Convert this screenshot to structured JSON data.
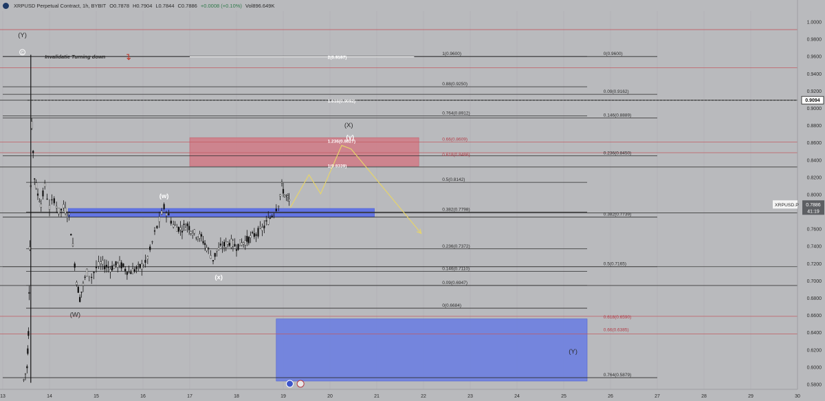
{
  "header": {
    "symbol": "XRPUSD Perpetual Contract, 1h, BYBIT",
    "open": "O0.7878",
    "high": "H0.7904",
    "low": "L0.7844",
    "close": "C0.7886",
    "change": "+0.0008 (+0.10%)",
    "volume": "Vol896.649K"
  },
  "chart_data": {
    "type": "candlestick",
    "symbol": "XRPUSD Perpetual Contract",
    "interval": "1h",
    "exchange": "BYBIT",
    "ylim": [
      0.58,
      1.0
    ],
    "y_ticks": [
      "0.5800",
      "0.6000",
      "0.6200",
      "0.6400",
      "0.6600",
      "0.6800",
      "0.7000",
      "0.7200",
      "0.7400",
      "0.7600",
      "0.7800",
      "0.8000",
      "0.8200",
      "0.8400",
      "0.8600",
      "0.8800",
      "0.9000",
      "0.9200",
      "0.9400",
      "0.9600",
      "0.9800",
      "1.0000"
    ],
    "x_ticks": [
      {
        "label": "13",
        "day": 13
      },
      {
        "label": "14",
        "day": 14
      },
      {
        "label": "15",
        "day": 15
      },
      {
        "label": "16",
        "day": 16
      },
      {
        "label": "17",
        "day": 17
      },
      {
        "label": "18",
        "day": 18
      },
      {
        "label": "19",
        "day": 19
      },
      {
        "label": "20",
        "day": 20
      },
      {
        "label": "21",
        "day": 21
      },
      {
        "label": "22",
        "day": 22
      },
      {
        "label": "23",
        "day": 23
      },
      {
        "label": "24",
        "day": 24
      },
      {
        "label": "25",
        "day": 25
      },
      {
        "label": "26",
        "day": 26
      },
      {
        "label": "27",
        "day": 27
      },
      {
        "label": "28",
        "day": 28
      },
      {
        "label": "29",
        "day": 29
      },
      {
        "label": "30",
        "day": 30
      }
    ],
    "price_path": [
      [
        13.45,
        0.585
      ],
      [
        13.52,
        0.6
      ],
      [
        13.55,
        0.64
      ],
      [
        13.58,
        0.74
      ],
      [
        13.62,
        0.88
      ],
      [
        13.68,
        0.82
      ],
      [
        13.75,
        0.8
      ],
      [
        13.82,
        0.79
      ],
      [
        13.9,
        0.81
      ],
      [
        14.0,
        0.785
      ],
      [
        14.1,
        0.795
      ],
      [
        14.2,
        0.78
      ],
      [
        14.3,
        0.785
      ],
      [
        14.42,
        0.775
      ],
      [
        14.5,
        0.74
      ],
      [
        14.58,
        0.7
      ],
      [
        14.65,
        0.68
      ],
      [
        14.72,
        0.695
      ],
      [
        14.8,
        0.71
      ],
      [
        14.9,
        0.705
      ],
      [
        15.0,
        0.715
      ],
      [
        15.1,
        0.72
      ],
      [
        15.3,
        0.715
      ],
      [
        15.5,
        0.72
      ],
      [
        15.7,
        0.71
      ],
      [
        15.9,
        0.715
      ],
      [
        16.05,
        0.72
      ],
      [
        16.15,
        0.735
      ],
      [
        16.25,
        0.755
      ],
      [
        16.35,
        0.77
      ],
      [
        16.45,
        0.785
      ],
      [
        16.55,
        0.775
      ],
      [
        16.65,
        0.765
      ],
      [
        16.8,
        0.76
      ],
      [
        16.95,
        0.765
      ],
      [
        17.1,
        0.755
      ],
      [
        17.25,
        0.75
      ],
      [
        17.4,
        0.735
      ],
      [
        17.5,
        0.725
      ],
      [
        17.58,
        0.735
      ],
      [
        17.7,
        0.74
      ],
      [
        17.85,
        0.745
      ],
      [
        18.0,
        0.74
      ],
      [
        18.15,
        0.745
      ],
      [
        18.3,
        0.75
      ],
      [
        18.42,
        0.755
      ],
      [
        18.55,
        0.76
      ],
      [
        18.68,
        0.77
      ],
      [
        18.8,
        0.78
      ],
      [
        18.9,
        0.79
      ],
      [
        18.97,
        0.81
      ],
      [
        19.03,
        0.8
      ],
      [
        19.1,
        0.795
      ],
      [
        19.15,
        0.789
      ]
    ],
    "last_price": "0.7886",
    "price_label": "XRPUSD.P",
    "countdown": "41:19",
    "marked_price": "0.9094",
    "hlines": [
      0.9912,
      0.947,
      0.9094,
      0.8609,
      0.8486,
      0.832,
      0.7788,
      0.7165,
      0.6947,
      0.659,
      0.6385
    ],
    "zones": [
      {
        "name": "resistance-zone",
        "color": "#d07a86",
        "day_start": 17.0,
        "day_end": 21.9,
        "from": 0.833,
        "to": 0.866
      },
      {
        "name": "support-bar",
        "color": "#5a6ee6",
        "day_start": 14.4,
        "day_end": 20.95,
        "from": 0.774,
        "to": 0.784
      },
      {
        "name": "target-zone",
        "color": "#6d7fe0",
        "day_start": 18.85,
        "day_end": 25.5,
        "from": 0.584,
        "to": 0.656
      }
    ],
    "projection": [
      [
        19.15,
        0.785
      ],
      [
        19.55,
        0.823
      ],
      [
        19.8,
        0.801
      ],
      [
        20.25,
        0.857
      ],
      [
        20.45,
        0.853
      ],
      [
        21.95,
        0.755
      ]
    ],
    "fib_left": [
      {
        "label": "2(0.9597)",
        "value": 0.9597,
        "day_start": 17.0,
        "day_end": 22.8
      },
      {
        "label": "1.618(0.9092)",
        "value": 0.9092,
        "day_start": 13.0,
        "day_end": 24.5
      },
      {
        "label": "1.236(0.8627)",
        "value": 0.8627,
        "day_start": 13.0,
        "day_end": 24.5
      },
      {
        "label": "1(0.8339)",
        "value": 0.8339,
        "day_start": 17.0,
        "day_end": 22.8
      }
    ],
    "fib_mid": [
      {
        "label": "1(0.9600)",
        "value": 0.96,
        "day_start": 13.0,
        "day_end": 25.5
      },
      {
        "label": "0.88(0.9250)",
        "value": 0.925,
        "day_start": 13.0,
        "day_end": 25.5
      },
      {
        "label": "0.764(0.8912)",
        "value": 0.8912,
        "day_start": 13.0,
        "day_end": 25.5
      },
      {
        "label": "0.5(0.8142)",
        "value": 0.8142,
        "day_start": 13.5,
        "day_end": 25.5
      },
      {
        "label": "0.382(0.7798)",
        "value": 0.7798,
        "day_start": 13.5,
        "day_end": 25.5
      },
      {
        "label": "0.236(0.7372)",
        "value": 0.7372,
        "day_start": 13.5,
        "day_end": 25.5
      },
      {
        "label": "0.146(0.7110)",
        "value": 0.711,
        "day_start": 13.5,
        "day_end": 25.5
      },
      {
        "label": "0.09(0.6947)",
        "value": 0.6947,
        "day_start": 13.5,
        "day_end": 25.5
      },
      {
        "label": "0(0.6684)",
        "value": 0.6684,
        "day_start": 13.5,
        "day_end": 25.5
      }
    ],
    "fib_right": [
      {
        "label": "0(0.9600)",
        "value": 0.96,
        "day_start": 13.0,
        "day_end": 27.0
      },
      {
        "label": "0.09(0.9162)",
        "value": 0.9162,
        "day_start": 13.0,
        "day_end": 27.0
      },
      {
        "label": "0.146(0.8889)",
        "value": 0.8889,
        "day_start": 13.0,
        "day_end": 27.0
      },
      {
        "label": "0.236(0.8450)",
        "value": 0.845,
        "day_start": 13.0,
        "day_end": 27.0
      },
      {
        "label": "0.382(0.7739)",
        "value": 0.7739,
        "day_start": 13.0,
        "day_end": 27.0
      },
      {
        "label": "0.5(0.7165)",
        "value": 0.7165,
        "day_start": 13.0,
        "day_end": 27.0
      },
      {
        "label": "0.764(0.5879)",
        "value": 0.5879,
        "day_start": 13.0,
        "day_end": 27.0
      }
    ],
    "fib_red": [
      {
        "label": "0.66(0.8609)",
        "value": 0.8609
      },
      {
        "label": "0.618(0.8486)",
        "value": 0.8486
      },
      {
        "label": "0.618(0.6590)",
        "value": 0.659
      },
      {
        "label": "0.66(0.6385)",
        "value": 0.6385
      }
    ],
    "wave_labels": [
      {
        "text": "(Y)",
        "day": 13.42,
        "value": 0.9825,
        "color": "#2b2b2b"
      },
      {
        "text": "(W)",
        "day": 14.55,
        "value": 0.6585,
        "color": "#2b2b2b"
      },
      {
        "text": "(w)",
        "day": 16.45,
        "value": 0.7958,
        "color": "#ffffff"
      },
      {
        "text": "(x)",
        "day": 17.62,
        "value": 0.702,
        "color": "#ffffff"
      },
      {
        "text": "(X)",
        "day": 20.4,
        "value": 0.878,
        "color": "#2b2b2b"
      },
      {
        "text": "(y)",
        "day": 20.43,
        "value": 0.864,
        "color": "#ffffff"
      },
      {
        "text": "(Y)",
        "day": 25.2,
        "value": 0.616,
        "color": "#2b2b2b"
      }
    ],
    "annotation": {
      "text": "Invalidatie Turning down",
      "day": 13.9,
      "value": 0.96,
      "color": "#2b2b2b"
    }
  }
}
